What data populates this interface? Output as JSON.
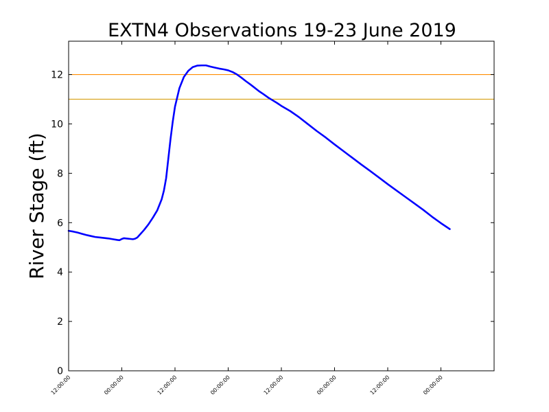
{
  "chart_data": {
    "type": "line",
    "title": "EXTN4 Observations 19-23 June 2019",
    "xlabel": "",
    "ylabel": "River Stage (ft)",
    "ylim": [
      0,
      13.35
    ],
    "y_ticks": [
      0,
      2,
      4,
      6,
      8,
      10,
      12
    ],
    "x_range_hours": [
      0,
      96
    ],
    "x_ticks": [
      {
        "hour": 0,
        "label": "12:00:00"
      },
      {
        "hour": 12,
        "label": "00:00:00"
      },
      {
        "hour": 24,
        "label": "12:00:00"
      },
      {
        "hour": 36,
        "label": "00:00:00"
      },
      {
        "hour": 48,
        "label": "12:00:00"
      },
      {
        "hour": 60,
        "label": "00:00:00"
      },
      {
        "hour": 72,
        "label": "12:00:00"
      },
      {
        "hour": 84,
        "label": "00:00:00"
      }
    ],
    "grid": false,
    "legend": "none",
    "reference_lines": [
      {
        "value": 12.0,
        "color": "#ff8c00"
      },
      {
        "value": 11.0,
        "color": "#daa520"
      }
    ],
    "series": [
      {
        "color": "#0000ff",
        "points": [
          [
            0.0,
            5.67
          ],
          [
            1.0,
            5.64
          ],
          [
            2.0,
            5.6
          ],
          [
            3.0,
            5.55
          ],
          [
            4.0,
            5.5
          ],
          [
            5.0,
            5.46
          ],
          [
            6.0,
            5.42
          ],
          [
            7.0,
            5.4
          ],
          [
            8.0,
            5.38
          ],
          [
            9.0,
            5.36
          ],
          [
            10.0,
            5.33
          ],
          [
            11.0,
            5.3
          ],
          [
            11.5,
            5.29
          ],
          [
            12.0,
            5.34
          ],
          [
            12.5,
            5.37
          ],
          [
            13.0,
            5.36
          ],
          [
            14.0,
            5.34
          ],
          [
            14.5,
            5.33
          ],
          [
            15.0,
            5.35
          ],
          [
            15.5,
            5.4
          ],
          [
            16.0,
            5.5
          ],
          [
            17.0,
            5.7
          ],
          [
            18.0,
            5.93
          ],
          [
            19.0,
            6.2
          ],
          [
            20.0,
            6.5
          ],
          [
            21.0,
            6.95
          ],
          [
            21.5,
            7.3
          ],
          [
            22.0,
            7.8
          ],
          [
            22.5,
            8.6
          ],
          [
            23.0,
            9.4
          ],
          [
            23.5,
            10.1
          ],
          [
            24.0,
            10.7
          ],
          [
            25.0,
            11.45
          ],
          [
            26.0,
            11.9
          ],
          [
            27.0,
            12.15
          ],
          [
            28.0,
            12.3
          ],
          [
            29.0,
            12.36
          ],
          [
            30.0,
            12.37
          ],
          [
            31.0,
            12.37
          ],
          [
            32.0,
            12.32
          ],
          [
            33.0,
            12.28
          ],
          [
            34.0,
            12.24
          ],
          [
            35.0,
            12.21
          ],
          [
            36.0,
            12.17
          ],
          [
            37.0,
            12.1
          ],
          [
            38.0,
            12.0
          ],
          [
            39.0,
            11.87
          ],
          [
            40.0,
            11.73
          ],
          [
            41.0,
            11.6
          ],
          [
            42.0,
            11.46
          ],
          [
            43.0,
            11.32
          ],
          [
            44.0,
            11.2
          ],
          [
            45.0,
            11.07
          ],
          [
            46.0,
            10.96
          ],
          [
            47.0,
            10.85
          ],
          [
            48.0,
            10.73
          ],
          [
            50.0,
            10.52
          ],
          [
            52.0,
            10.27
          ],
          [
            54.0,
            9.99
          ],
          [
            56.0,
            9.71
          ],
          [
            58.0,
            9.45
          ],
          [
            60.0,
            9.17
          ],
          [
            62.0,
            8.9
          ],
          [
            64.0,
            8.63
          ],
          [
            66.0,
            8.36
          ],
          [
            68.0,
            8.1
          ],
          [
            70.0,
            7.83
          ],
          [
            72.0,
            7.56
          ],
          [
            74.0,
            7.3
          ],
          [
            76.0,
            7.04
          ],
          [
            78.0,
            6.78
          ],
          [
            80.0,
            6.52
          ],
          [
            82.0,
            6.24
          ],
          [
            84.0,
            5.98
          ],
          [
            86.0,
            5.74
          ]
        ]
      }
    ]
  }
}
